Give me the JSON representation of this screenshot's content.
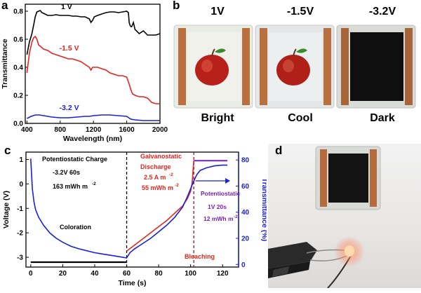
{
  "panels": {
    "a": "a",
    "b": "b",
    "c": "c",
    "d": "d"
  },
  "panel_b": {
    "top_labels": [
      "1V",
      "-1.5V",
      "-3.2V"
    ],
    "bottom_labels": [
      "Bright",
      "Cool",
      "Dark"
    ]
  },
  "chart_data": [
    {
      "type": "line",
      "xlabel": "Wavelength (nm)",
      "ylabel": "Transmittance",
      "xlim": [
        380,
        2000
      ],
      "ylim": [
        0,
        0.85
      ],
      "xticks": [
        400,
        800,
        1200,
        1600,
        2000
      ],
      "yticks": [
        0.0,
        0.2,
        0.4,
        0.6,
        0.8
      ],
      "series": [
        {
          "name": "1 V",
          "color": "#000000",
          "x": [
            400,
            430,
            460,
            480,
            500,
            520,
            540,
            560,
            580,
            600,
            650,
            700,
            750,
            800,
            850,
            900,
            950,
            1000,
            1050,
            1100,
            1150,
            1170,
            1190,
            1210,
            1250,
            1300,
            1350,
            1400,
            1450,
            1500,
            1550,
            1600,
            1620,
            1630,
            1640,
            1650,
            1660,
            1680,
            1700,
            1750,
            1800,
            1850,
            1900,
            1950,
            2000
          ],
          "y": [
            0.49,
            0.58,
            0.64,
            0.7,
            0.76,
            0.795,
            0.8,
            0.805,
            0.79,
            0.785,
            0.77,
            0.77,
            0.775,
            0.77,
            0.77,
            0.77,
            0.765,
            0.765,
            0.76,
            0.76,
            0.745,
            0.72,
            0.735,
            0.76,
            0.77,
            0.78,
            0.79,
            0.795,
            0.795,
            0.79,
            0.795,
            0.8,
            0.79,
            0.72,
            0.7,
            0.69,
            0.69,
            0.72,
            0.67,
            0.64,
            0.66,
            0.63,
            0.63,
            0.63,
            0.64
          ]
        },
        {
          "name": "-1.5 V",
          "color": "#e8231e",
          "x": [
            400,
            430,
            460,
            480,
            500,
            520,
            540,
            560,
            580,
            600,
            650,
            700,
            750,
            800,
            850,
            900,
            950,
            1000,
            1050,
            1100,
            1150,
            1170,
            1190,
            1250,
            1300,
            1350,
            1400,
            1450,
            1500,
            1550,
            1600,
            1630,
            1650,
            1670,
            1700,
            1750,
            1800,
            1850,
            1900,
            1950,
            2000
          ],
          "y": [
            0.36,
            0.5,
            0.58,
            0.61,
            0.62,
            0.6,
            0.56,
            0.55,
            0.54,
            0.53,
            0.52,
            0.5,
            0.49,
            0.48,
            0.47,
            0.46,
            0.46,
            0.45,
            0.44,
            0.42,
            0.4,
            0.38,
            0.4,
            0.4,
            0.39,
            0.38,
            0.36,
            0.35,
            0.34,
            0.34,
            0.33,
            0.28,
            0.24,
            0.21,
            0.2,
            0.19,
            0.19,
            0.18,
            0.15,
            0.14,
            0.14
          ]
        },
        {
          "name": "-3.2 V",
          "color": "#1a1fe0",
          "x": [
            400,
            450,
            500,
            550,
            600,
            650,
            700,
            800,
            900,
            1000,
            1100,
            1150,
            1200,
            1300,
            1400,
            1500,
            1600,
            1650,
            1700,
            1800,
            1900,
            2000
          ],
          "y": [
            0.035,
            0.05,
            0.06,
            0.06,
            0.055,
            0.05,
            0.045,
            0.04,
            0.04,
            0.045,
            0.05,
            0.05,
            0.055,
            0.06,
            0.06,
            0.055,
            0.05,
            0.03,
            0.025,
            0.02,
            0.02,
            0.02
          ]
        }
      ]
    },
    {
      "type": "line",
      "xlabel": "Time (s)",
      "ylabel": "Voltage (V)",
      "y2label": "Transmittance (%)",
      "xlim": [
        -3,
        130
      ],
      "ylim": [
        -3.4,
        1.3
      ],
      "y2lim": [
        -2,
        86
      ],
      "xticks": [
        0,
        20,
        40,
        60,
        80,
        100,
        120
      ],
      "yticks": [
        -3,
        -2,
        -1,
        0,
        1
      ],
      "y2ticks": [
        0,
        20,
        40,
        60,
        80
      ],
      "vlines": [
        60,
        102
      ],
      "annotations": {
        "charge_title": "Potentiostatic Charge",
        "charge_voltage": "-3.2V 60s",
        "charge_energy": "163 mWh  m",
        "charge_energy_sup": "-2",
        "coloration": "Coloration",
        "discharge_line1": "Galvanostatic",
        "discharge_line2": "Discharge",
        "discharge_current": "2.5 A m",
        "discharge_current_sup": "-2",
        "discharge_energy": "55 mWh  m",
        "discharge_energy_sup": "-2",
        "bleaching": "Bleaching",
        "pot_title": "Potentiostatic",
        "pot_voltage": "1V 20s",
        "pot_energy": "12 mWh  m",
        "pot_energy_sup": "-2"
      },
      "series": [
        {
          "name": "voltage",
          "axis": "left",
          "color": "#000000",
          "x": [
            0,
            60,
            100,
            102,
            123
          ],
          "y": [
            -3.2,
            -3.2,
            null,
            null,
            null
          ]
        },
        {
          "name": "voltage_discharge",
          "axis": "left",
          "color": "#e8231e",
          "x": [
            60,
            65,
            70,
            75,
            80,
            85,
            90,
            95,
            98,
            100,
            101,
            102
          ],
          "y": [
            -2.75,
            -2.5,
            -2.25,
            -2.0,
            -1.75,
            -1.5,
            -1.2,
            -0.9,
            -0.6,
            -0.3,
            0.05,
            0.95
          ]
        },
        {
          "name": "voltage_bleach",
          "axis": "left",
          "color": "#7a1fb5",
          "x": [
            102,
            123
          ],
          "y": [
            0.95,
            0.95
          ]
        },
        {
          "name": "transmittance",
          "axis": "right",
          "color": "#1a1fe0",
          "x": [
            0,
            1,
            2,
            3,
            5,
            8,
            12,
            16,
            20,
            25,
            30,
            35,
            40,
            45,
            50,
            55,
            60,
            62,
            65,
            70,
            75,
            80,
            85,
            90,
            95,
            98,
            100,
            102,
            104,
            106,
            110,
            115,
            120,
            123
          ],
          "y": [
            81,
            58,
            48,
            42,
            36,
            30,
            24,
            20,
            17,
            14,
            12,
            10.5,
            9,
            8,
            7,
            6,
            5,
            9,
            12,
            16,
            20,
            25,
            30,
            36,
            44,
            52,
            58,
            64,
            69,
            72,
            74,
            75.5,
            76,
            76
          ]
        }
      ]
    }
  ],
  "panel_d": {
    "scene": "device powering LED"
  }
}
